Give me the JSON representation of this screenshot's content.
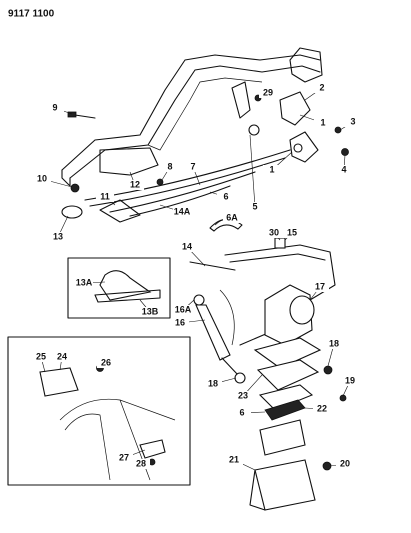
{
  "header": {
    "title": "9117 1100"
  },
  "callouts": [
    {
      "label": "9"
    },
    {
      "label": "29"
    },
    {
      "label": "2"
    },
    {
      "label": "1"
    },
    {
      "label": "3"
    },
    {
      "label": "1"
    },
    {
      "label": "4"
    },
    {
      "label": "8"
    },
    {
      "label": "7"
    },
    {
      "label": "10"
    },
    {
      "label": "12"
    },
    {
      "label": "11"
    },
    {
      "label": "6"
    },
    {
      "label": "5"
    },
    {
      "label": "14A"
    },
    {
      "label": "13"
    },
    {
      "label": "6A"
    },
    {
      "label": "30"
    },
    {
      "label": "15"
    },
    {
      "label": "14"
    },
    {
      "label": "13A"
    },
    {
      "label": "13B"
    },
    {
      "label": "17"
    },
    {
      "label": "16A"
    },
    {
      "label": "16"
    },
    {
      "label": "25"
    },
    {
      "label": "24"
    },
    {
      "label": "26"
    },
    {
      "label": "18"
    },
    {
      "label": "18"
    },
    {
      "label": "23"
    },
    {
      "label": "19"
    },
    {
      "label": "22"
    },
    {
      "label": "6"
    },
    {
      "label": "27"
    },
    {
      "label": "28"
    },
    {
      "label": "21"
    },
    {
      "label": "20"
    }
  ]
}
